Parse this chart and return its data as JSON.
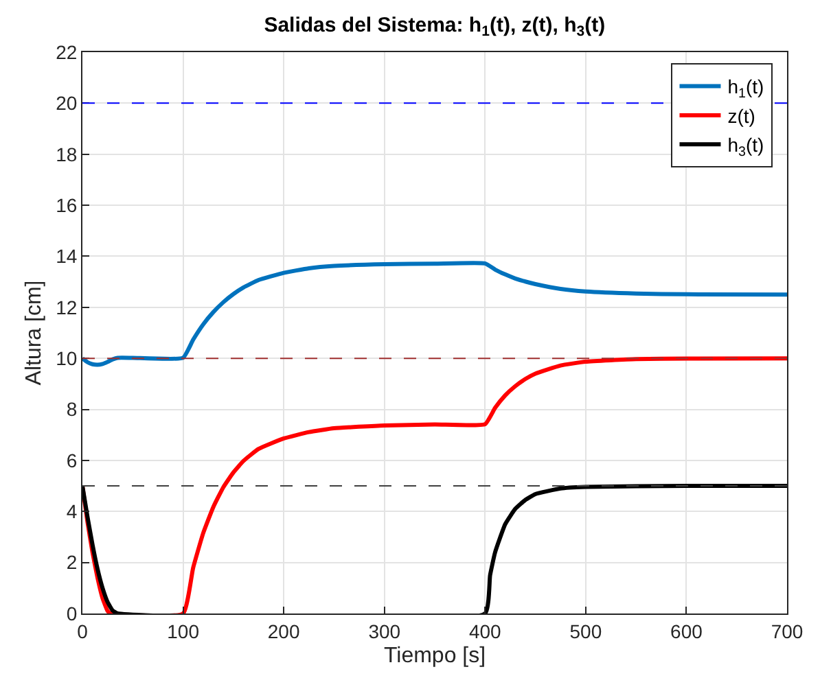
{
  "chart_data": {
    "type": "line",
    "title": "Salidas del Sistema: h$_{1}$(t), z(t), h$_{3}$(t)",
    "xlabel": "Tiempo [s]",
    "ylabel": "Altura [cm]",
    "xlim": [
      0,
      700
    ],
    "xticks": [
      0,
      100,
      200,
      300,
      400,
      500,
      600,
      700
    ],
    "ylim": [
      0,
      22
    ],
    "yticks": [
      0,
      2,
      4,
      6,
      8,
      10,
      12,
      14,
      16,
      18,
      20,
      22
    ],
    "grid": true,
    "legend": "top right",
    "marker": "none",
    "line_style": "solid",
    "series": [
      {
        "name": "h$_{1}$(t)",
        "color": "#0072bd",
        "x": [
          0,
          5,
          10,
          15,
          20,
          25,
          30,
          35,
          50,
          100,
          110,
          120,
          130,
          140,
          150,
          160,
          175,
          200,
          225,
          250,
          300,
          350,
          400,
          410,
          420,
          430,
          440,
          450,
          475,
          500,
          550,
          600,
          700
        ],
        "values": [
          10,
          9.85,
          9.77,
          9.75,
          9.78,
          9.86,
          9.96,
          10.02,
          10.02,
          10.02,
          10.73,
          11.33,
          11.81,
          12.2,
          12.52,
          12.78,
          13.07,
          13.35,
          13.53,
          13.62,
          13.69,
          13.71,
          13.72,
          13.48,
          13.29,
          13.13,
          13.01,
          12.91,
          12.72,
          12.62,
          12.54,
          12.51,
          12.5
        ]
      },
      {
        "name": "z(t)",
        "color": "#ff0000",
        "x": [
          0,
          5,
          10,
          15,
          20,
          25,
          28,
          100,
          110,
          120,
          130,
          140,
          150,
          160,
          175,
          200,
          225,
          250,
          300,
          350,
          400,
          410,
          420,
          430,
          440,
          450,
          475,
          500,
          550,
          600,
          700
        ],
        "values": [
          5,
          3.6,
          2.4,
          1.4,
          0.6,
          0.1,
          0,
          0,
          1.79,
          3.15,
          4.17,
          4.95,
          5.53,
          5.98,
          6.45,
          6.86,
          7.11,
          7.26,
          7.37,
          7.41,
          7.42,
          8.06,
          8.55,
          8.91,
          9.19,
          9.4,
          9.72,
          9.87,
          9.97,
          9.99,
          10
        ]
      },
      {
        "name": "h$_{3}$(t)",
        "color": "#000000",
        "x": [
          0,
          5,
          10,
          15,
          20,
          25,
          30,
          35,
          400,
          405,
          410,
          420,
          430,
          440,
          450,
          475,
          500,
          550,
          600,
          700
        ],
        "values": [
          5,
          3.8,
          2.7,
          1.75,
          1.0,
          0.45,
          0.12,
          0,
          0,
          1.5,
          2.4,
          3.5,
          4.1,
          4.45,
          4.68,
          4.9,
          4.96,
          4.99,
          5,
          5
        ]
      }
    ],
    "ref_lines": [
      {
        "axis": "y",
        "value": 20,
        "color": "#0000ff",
        "line_style": "dashed"
      },
      {
        "axis": "y",
        "value": 10,
        "color": "#a03030",
        "line_style": "dashed"
      },
      {
        "axis": "y",
        "value": 5,
        "color": "#404040",
        "line_style": "dashed"
      }
    ]
  }
}
